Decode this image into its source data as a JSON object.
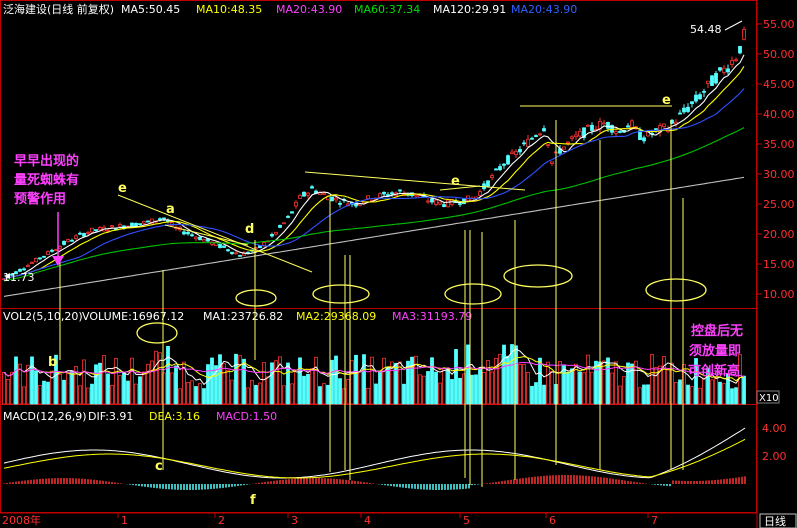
{
  "header": {
    "stock_title": "泛海建设(日线 前复权)",
    "ma5": "MA5:50.45",
    "ma10": "MA10:48.35",
    "ma20": "MA20:43.90",
    "ma60": "MA60:37.34",
    "ma120": "MA120:29.91",
    "ma250": "MA20:43.90",
    "up_arrow": "↑"
  },
  "volume_header": {
    "vol": "VOL2(5,10,20)",
    "volume": "VOLUME:16967.12",
    "ma1": "MA1:23726.82",
    "ma2": "MA2:29368.09",
    "ma3": "MA3:31193.79",
    "down_arrow": "↓"
  },
  "macd_header": {
    "macd": "MACD(12,26,9)",
    "dif": "DIF:3.91",
    "dea": "DEA:3.16",
    "macd_val": "MACD:1.50",
    "down_arrow": "↓"
  },
  "price_axis": [
    "55.00",
    "50.00",
    "45.00",
    "40.00",
    "35.00",
    "30.00",
    "25.00",
    "20.00",
    "15.00",
    "10.00"
  ],
  "volume_axis_unit": "X10",
  "macd_axis": [
    "4.00",
    "2.00"
  ],
  "time_axis": {
    "start_label": "2008年",
    "months": [
      "1",
      "2",
      "3",
      "4",
      "5",
      "6",
      "7"
    ],
    "period_button": "日线"
  },
  "price_labels": {
    "high": "54.48",
    "low": "11.73"
  },
  "annotations": {
    "left_note": [
      "早早出现的",
      "量死蜘蛛有",
      "预警作用"
    ],
    "right_note": [
      "控盘后无",
      "须放量即",
      "可创新高"
    ],
    "points": [
      "e",
      "a",
      "d",
      "e",
      "e",
      "b",
      "c",
      "f"
    ]
  },
  "colors": {
    "background": "#000000",
    "up_candle": "#ff3232",
    "down_candle": "#54ffff",
    "ma5": "#ffffff",
    "ma10": "#ffff00",
    "ma20": "#ff00ff",
    "ma60": "#00c000",
    "ma120": "#c0c0c0",
    "ma_blue": "#3050ff",
    "annotation_yellow": "#ffff60",
    "annotation_pink": "#ff40ff",
    "axis_red": "#c00000"
  },
  "chart_data": {
    "type": "candlestick",
    "title": "泛海建设(日线 前复权)",
    "y_range": [
      9,
      56
    ],
    "price_ticks": [
      55,
      50,
      45,
      40,
      35,
      30,
      25,
      20,
      15,
      10
    ],
    "key_points": [
      {
        "label": "start",
        "price": 11.73
      },
      {
        "label": "a",
        "price": 22.5
      },
      {
        "label": "d",
        "price": 16.5
      },
      {
        "label": "e",
        "price": 26.5
      },
      {
        "label": "e",
        "price": 40.5
      },
      {
        "label": "end",
        "price": 54.48
      }
    ],
    "series": [
      {
        "name": "MA5",
        "value": 50.45
      },
      {
        "name": "MA10",
        "value": 48.35
      },
      {
        "name": "MA20",
        "value": 43.9
      },
      {
        "name": "MA60",
        "value": 37.34
      },
      {
        "name": "MA120",
        "value": 29.91
      }
    ],
    "volume": {
      "VOLUME": 16967.12,
      "MA1": 23726.82,
      "MA2": 29368.09,
      "MA3": 31193.79
    },
    "macd": {
      "DIF": 3.91,
      "DEA": 3.16,
      "MACD": 1.5
    }
  }
}
